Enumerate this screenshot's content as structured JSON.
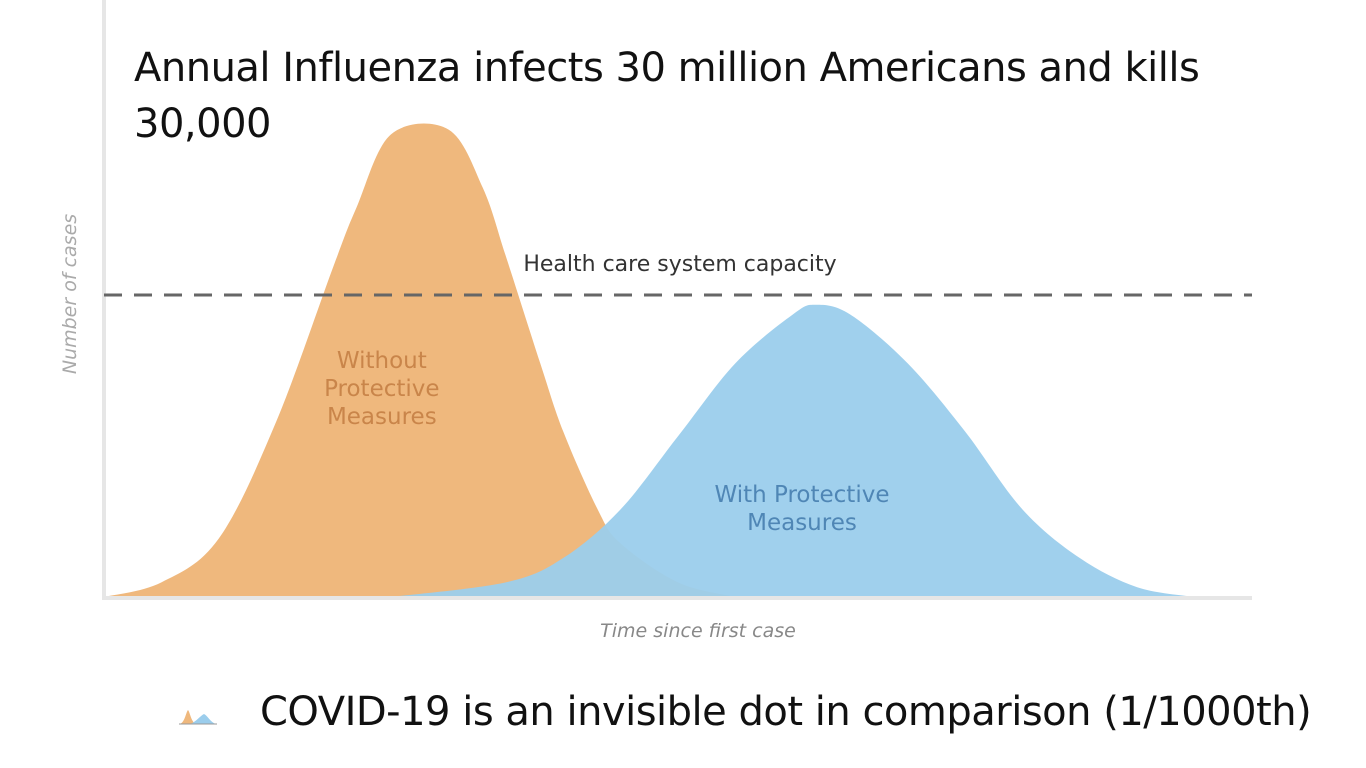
{
  "overlay": {
    "title": "Annual Influenza infects 30 million Americans and kills 30,000",
    "footnote": "COVID-19 is an invisible dot in comparison (1/1000th)",
    "mini_icon": "tiny-flatten-curve-icon"
  },
  "chart_data": {
    "type": "area",
    "title": "",
    "xlabel": "Time since first case",
    "ylabel": "Number of cases",
    "xlim": [
      0,
      100
    ],
    "ylim": [
      0,
      100
    ],
    "grid": false,
    "threshold": {
      "label": "Health care system capacity",
      "value": 62,
      "style": "dashed"
    },
    "series": [
      {
        "name": "Without Protective Measures",
        "color": "#efb87d",
        "label_color": "#c9854a",
        "x": [
          0,
          5,
          10,
          15,
          20,
          22,
          25,
          30,
          33,
          35,
          38,
          40,
          43,
          45,
          50,
          55
        ],
        "values": [
          0,
          3,
          12,
          36,
          68,
          80,
          95,
          96,
          84,
          70,
          48,
          34,
          18,
          11,
          3,
          0
        ]
      },
      {
        "name": "With Protective Measures",
        "color": "#9bcdec",
        "label_color": "#4f86b5",
        "x": [
          25,
          35,
          40,
          45,
          50,
          55,
          60,
          62,
          65,
          70,
          75,
          80,
          85,
          90,
          95
        ],
        "values": [
          0,
          3,
          8,
          18,
          33,
          48,
          58,
          60,
          58,
          48,
          34,
          18,
          8,
          2,
          0
        ]
      }
    ],
    "series_labels": [
      [
        "Without",
        "Protective",
        "Measures"
      ],
      [
        "With Protective",
        "Measures"
      ]
    ]
  }
}
